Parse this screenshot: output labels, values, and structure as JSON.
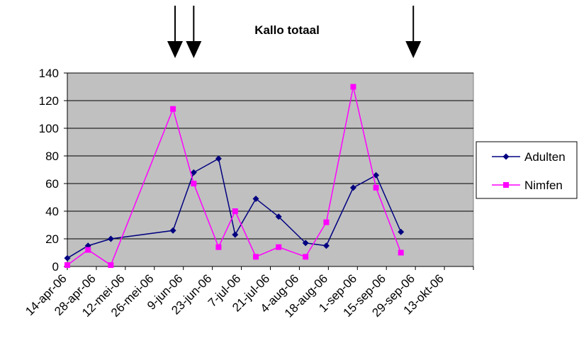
{
  "chart_data": {
    "type": "line",
    "title": "Kallo totaal",
    "xlabel": "",
    "ylabel": "",
    "ylim": [
      0,
      140
    ],
    "yticks": [
      0,
      20,
      40,
      60,
      80,
      100,
      120,
      140
    ],
    "x_tick_labels": [
      "14-apr-06",
      "28-apr-06",
      "12-mei-06",
      "26-mei-06",
      "9-jun-06",
      "23-jun-06",
      "7-jul-06",
      "21-jul-06",
      "4-aug-06",
      "18-aug-06",
      "1-sep-06",
      "15-sep-06",
      "29-sep-06",
      "13-okt-06"
    ],
    "grid": true,
    "plot_background": "#c0c0c0",
    "legend_position": "right",
    "arrows_at": [
      "2006-06-05",
      "2006-06-14",
      "2006-09-28"
    ],
    "series": [
      {
        "name": "Adulten",
        "color": "#000080",
        "marker": "diamond",
        "points": [
          {
            "x": "2006-04-14",
            "y": 6
          },
          {
            "x": "2006-04-24",
            "y": 15
          },
          {
            "x": "2006-05-05",
            "y": 20
          },
          {
            "x": "2006-06-04",
            "y": 26
          },
          {
            "x": "2006-06-14",
            "y": 68
          },
          {
            "x": "2006-06-26",
            "y": 78
          },
          {
            "x": "2006-07-04",
            "y": 23
          },
          {
            "x": "2006-07-14",
            "y": 49
          },
          {
            "x": "2006-07-25",
            "y": 36
          },
          {
            "x": "2006-08-07",
            "y": 17
          },
          {
            "x": "2006-08-17",
            "y": 15
          },
          {
            "x": "2006-08-30",
            "y": 57
          },
          {
            "x": "2006-09-10",
            "y": 66
          },
          {
            "x": "2006-09-22",
            "y": 25
          }
        ]
      },
      {
        "name": "Nimfen",
        "color": "#ff00ff",
        "marker": "square",
        "points": [
          {
            "x": "2006-04-14",
            "y": 1
          },
          {
            "x": "2006-04-24",
            "y": 12
          },
          {
            "x": "2006-05-05",
            "y": 1
          },
          {
            "x": "2006-06-04",
            "y": 114
          },
          {
            "x": "2006-06-14",
            "y": 60
          },
          {
            "x": "2006-06-26",
            "y": 14
          },
          {
            "x": "2006-07-04",
            "y": 40
          },
          {
            "x": "2006-07-14",
            "y": 7
          },
          {
            "x": "2006-07-25",
            "y": 14
          },
          {
            "x": "2006-08-07",
            "y": 7
          },
          {
            "x": "2006-08-17",
            "y": 32
          },
          {
            "x": "2006-08-30",
            "y": 130
          },
          {
            "x": "2006-09-10",
            "y": 57
          },
          {
            "x": "2006-09-22",
            "y": 10
          }
        ]
      }
    ]
  }
}
